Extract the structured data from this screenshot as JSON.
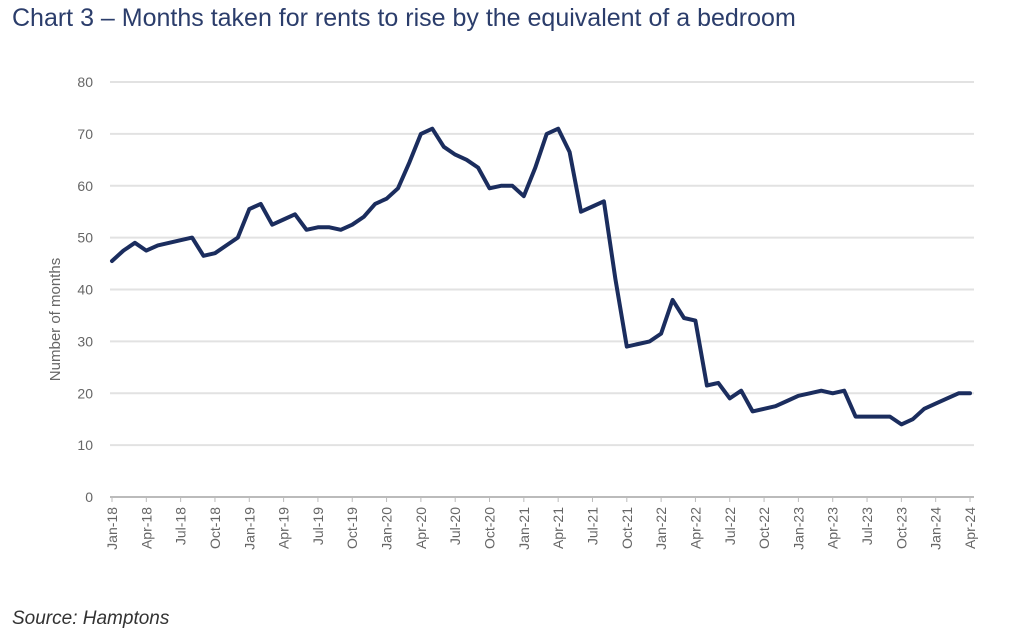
{
  "chart_data": {
    "type": "line",
    "title": "Chart 3 – Months taken for rents to rise by the equivalent of a bedroom",
    "source": "Source: Hamptons",
    "ylabel": "Number of months",
    "xlabel": "",
    "ylim": [
      0,
      80
    ],
    "yticks": [
      0,
      10,
      20,
      30,
      40,
      50,
      60,
      70,
      80
    ],
    "grid": true,
    "line_color": "#1b2d5e",
    "xtick_labels": [
      "Jan-18",
      "Apr-18",
      "Jul-18",
      "Oct-18",
      "Jan-19",
      "Apr-19",
      "Jul-19",
      "Oct-19",
      "Jan-20",
      "Apr-20",
      "Jul-20",
      "Oct-20",
      "Jan-21",
      "Apr-21",
      "Jul-21",
      "Oct-21",
      "Jan-22",
      "Apr-22",
      "Jul-22",
      "Oct-22",
      "Jan-23",
      "Apr-23",
      "Jul-23",
      "Oct-23",
      "Jan-24",
      "Apr-24"
    ],
    "series": [
      {
        "name": "Months",
        "start": "Jan-18",
        "frequency": "monthly",
        "values": [
          45.5,
          47.5,
          49,
          47.5,
          48.5,
          49,
          49.5,
          50,
          46.5,
          47,
          48.5,
          50,
          55.5,
          56.5,
          52.5,
          53.5,
          54.5,
          51.5,
          52,
          52,
          51.5,
          52.5,
          54,
          56.5,
          57.5,
          59.5,
          64.5,
          70,
          71,
          67.5,
          66,
          65,
          63.5,
          59.5,
          60,
          60,
          58,
          63.5,
          70,
          71,
          66.5,
          55,
          56,
          57,
          42,
          29,
          29.5,
          30,
          31.5,
          38,
          34.5,
          34,
          21.5,
          22,
          19,
          20.5,
          16.5,
          17,
          17.5,
          18.5,
          19.5,
          20,
          20.5,
          20,
          20.5,
          15.5,
          15.5,
          15.5,
          15.5,
          14,
          15,
          17,
          18,
          19,
          20,
          20
        ]
      }
    ]
  }
}
